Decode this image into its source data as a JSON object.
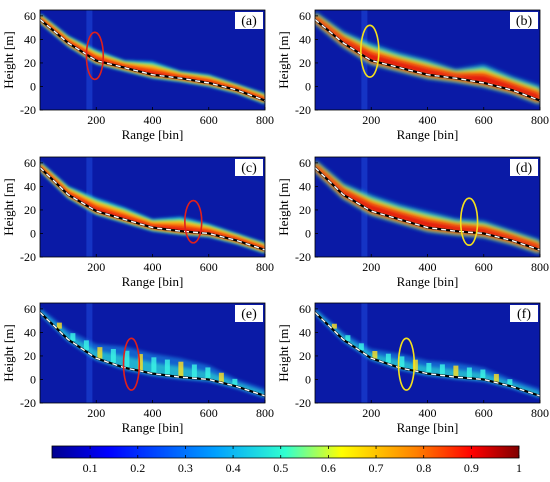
{
  "chart_data": [
    {
      "type": "heatmap",
      "panel_label": "(a)",
      "xlabel": "Range [bin]",
      "ylabel": "Height [m]",
      "xlim": [
        0,
        800
      ],
      "ylim": [
        -20,
        65
      ],
      "xticks": [
        200,
        400,
        600,
        800
      ],
      "yticks": [
        -20,
        0,
        20,
        40,
        60
      ],
      "profile": {
        "x": [
          0,
          100,
          200,
          300,
          400,
          500,
          600,
          700,
          800
        ],
        "y": [
          57,
          37,
          22,
          16,
          10,
          7,
          3,
          -3,
          -12
        ]
      },
      "band": {
        "style": "thin-broken",
        "upper_edge": [
          62,
          43,
          31,
          22,
          21,
          13,
          10,
          2,
          -6
        ]
      },
      "highlight": {
        "shape": "ellipse",
        "color": "#e0201c",
        "x": 195,
        "y": 26,
        "rx": 30,
        "ry": 20
      }
    },
    {
      "type": "heatmap",
      "panel_label": "(b)",
      "xlabel": "Range [bin]",
      "ylabel": "Height [m]",
      "xlim": [
        0,
        800
      ],
      "ylim": [
        -20,
        65
      ],
      "xticks": [
        200,
        400,
        600,
        800
      ],
      "yticks": [
        -20,
        0,
        20,
        40,
        60
      ],
      "profile": {
        "x": [
          0,
          100,
          200,
          300,
          400,
          500,
          600,
          700,
          800
        ],
        "y": [
          57,
          37,
          22,
          16,
          10,
          7,
          3,
          -3,
          -12
        ]
      },
      "band": {
        "style": "thick",
        "upper_edge": [
          63,
          46,
          36,
          28,
          22,
          14,
          18,
          8,
          0
        ]
      },
      "highlight": {
        "shape": "ellipse",
        "color": "#f4e01c",
        "x": 195,
        "y": 30,
        "rx": 32,
        "ry": 22
      }
    },
    {
      "type": "heatmap",
      "panel_label": "(c)",
      "xlabel": "Range [bin]",
      "ylabel": "Height [m]",
      "xlim": [
        0,
        800
      ],
      "ylim": [
        -20,
        65
      ],
      "xticks": [
        200,
        400,
        600,
        800
      ],
      "yticks": [
        -20,
        0,
        20,
        40,
        60
      ],
      "profile": {
        "x": [
          0,
          100,
          200,
          300,
          400,
          500,
          600,
          700,
          800
        ],
        "y": [
          56,
          33,
          19,
          12,
          5,
          2,
          0,
          -6,
          -14
        ]
      },
      "band": {
        "style": "thin-broken",
        "upper_edge": [
          61,
          40,
          30,
          22,
          12,
          14,
          8,
          0,
          -8
        ]
      },
      "highlight": {
        "shape": "ellipse",
        "color": "#e0201c",
        "x": 545,
        "y": 10,
        "rx": 30,
        "ry": 18
      }
    },
    {
      "type": "heatmap",
      "panel_label": "(d)",
      "xlabel": "Range [bin]",
      "ylabel": "Height [m]",
      "xlim": [
        0,
        800
      ],
      "ylim": [
        -20,
        65
      ],
      "xticks": [
        200,
        400,
        600,
        800
      ],
      "yticks": [
        -20,
        0,
        20,
        40,
        60
      ],
      "profile": {
        "x": [
          0,
          100,
          200,
          300,
          400,
          500,
          600,
          700,
          800
        ],
        "y": [
          56,
          33,
          19,
          12,
          5,
          2,
          0,
          -6,
          -14
        ]
      },
      "band": {
        "style": "thick",
        "upper_edge": [
          62,
          42,
          32,
          24,
          18,
          12,
          10,
          2,
          -6
        ]
      },
      "highlight": {
        "shape": "ellipse",
        "color": "#f4e01c",
        "x": 548,
        "y": 10,
        "rx": 30,
        "ry": 20
      }
    },
    {
      "type": "heatmap",
      "panel_label": "(e)",
      "xlabel": "Range [bin]",
      "ylabel": "Height [m]",
      "xlim": [
        0,
        800
      ],
      "ylim": [
        -20,
        65
      ],
      "xticks": [
        200,
        400,
        600,
        800
      ],
      "yticks": [
        -20,
        0,
        20,
        40,
        60
      ],
      "profile": {
        "x": [
          0,
          100,
          200,
          300,
          400,
          500,
          600,
          700,
          800
        ],
        "y": [
          57,
          34,
          18,
          10,
          5,
          2,
          0,
          -6,
          -14
        ]
      },
      "band": {
        "style": "sparse",
        "upper_edge": [
          61,
          42,
          30,
          28,
          22,
          18,
          12,
          0,
          -8
        ]
      },
      "highlight": {
        "shape": "ellipse",
        "color": "#e0201c",
        "x": 325,
        "y": 13,
        "rx": 28,
        "ry": 22
      }
    },
    {
      "type": "heatmap",
      "panel_label": "(f)",
      "xlabel": "Range [bin]",
      "ylabel": "Height [m]",
      "xlim": [
        0,
        800
      ],
      "ylim": [
        -20,
        65
      ],
      "xticks": [
        200,
        400,
        600,
        800
      ],
      "yticks": [
        -20,
        0,
        20,
        40,
        60
      ],
      "profile": {
        "x": [
          0,
          100,
          200,
          300,
          400,
          500,
          600,
          700,
          800
        ],
        "y": [
          57,
          34,
          18,
          10,
          5,
          2,
          0,
          -6,
          -14
        ]
      },
      "band": {
        "style": "sparse",
        "upper_edge": [
          61,
          40,
          26,
          22,
          16,
          14,
          10,
          0,
          -8
        ]
      },
      "highlight": {
        "shape": "ellipse",
        "color": "#f4e01c",
        "x": 325,
        "y": 13,
        "rx": 28,
        "ry": 22
      }
    }
  ],
  "colorbar": {
    "ticks": [
      "0.1",
      "0.2",
      "0.3",
      "0.4",
      "0.5",
      "0.6",
      "0.7",
      "0.8",
      "0.9",
      "1"
    ],
    "range": [
      0.02,
      1.0
    ],
    "colormap": [
      "#00008f",
      "#0000ff",
      "#00a0ff",
      "#30ffcf",
      "#ffff00",
      "#ff8000",
      "#ff0000",
      "#800000"
    ]
  },
  "colors": {
    "background_field": "#0a1aa6",
    "profile_line": "#ffffff",
    "profile_shadow": "#000000"
  }
}
